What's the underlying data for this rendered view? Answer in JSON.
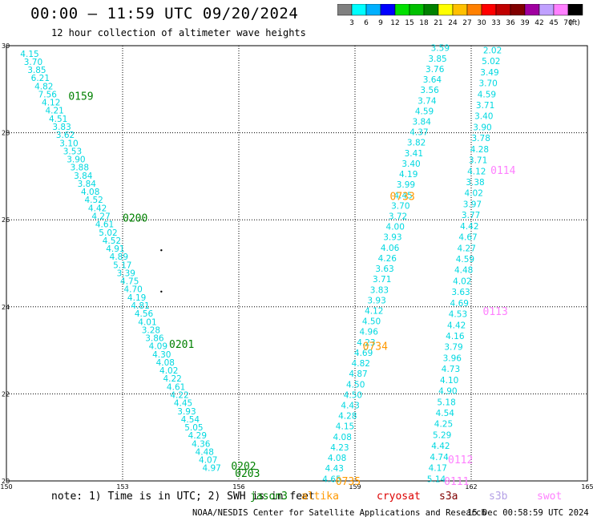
{
  "header": {
    "title": "00:00 – 11:59 UTC 09/20/2024",
    "subtitle": "12 hour collection of altimeter wave heights"
  },
  "colorbar": {
    "colors": [
      "#808080",
      "#00ffff",
      "#00b0ff",
      "#0000ff",
      "#00e000",
      "#00c000",
      "#008000",
      "#ffff00",
      "#ffc000",
      "#ff8000",
      "#ff0000",
      "#c00000",
      "#800000",
      "#a000a0",
      "#c0a0ff",
      "#ff80ff",
      "#000000"
    ],
    "labels": [
      "3",
      "6",
      "9",
      "12",
      "15",
      "18",
      "21",
      "24",
      "27",
      "30",
      "33",
      "36",
      "39",
      "42",
      "45",
      "70"
    ],
    "unit": "(ft)"
  },
  "note": "note: 1) Time is in UTC; 2) SWH is in feet",
  "satellites": [
    {
      "name": "jason3",
      "color": "#008000"
    },
    {
      "name": "altika",
      "color": "#ff9900"
    },
    {
      "name": "cryosat",
      "color": "#dd0000"
    },
    {
      "name": "s3a",
      "color": "#800000"
    },
    {
      "name": "s3b",
      "color": "#b4a0e6"
    },
    {
      "name": "swot",
      "color": "#ff80ff"
    }
  ],
  "footer": {
    "left": "NOAA/NESDIS Center for Satellite Applications and Research",
    "right": "15 Dec 00:58:59 UTC 2024"
  },
  "chart_data": {
    "type": "scatter",
    "xlim": [
      150,
      165
    ],
    "ylim": [
      20,
      30
    ],
    "xticks": [
      "150",
      "153",
      "156",
      "159",
      "162",
      "165"
    ],
    "yticks": [
      "30",
      "28",
      "26",
      "24",
      "22",
      "20"
    ],
    "ytick_values": [
      30,
      28,
      26,
      24,
      22,
      20
    ],
    "grid": true,
    "value_color": "#00d8e0",
    "tracks": [
      {
        "id": "track-1",
        "x0": 150.6,
        "y0": 29.82,
        "x1": 155.3,
        "y1": 20.3,
        "values": [
          "4.15",
          "3.70",
          "3.85",
          "6.21",
          "4.82",
          "7.56",
          "4.12",
          "4.21",
          "4.51",
          "3.83",
          "3.62",
          "3.10",
          "3.53",
          "3.90",
          "3.88",
          "3.84",
          "3.84",
          "4.08",
          "4.52",
          "4.42",
          "4.27",
          "4.61",
          "5.02",
          "4.52",
          "4.91",
          "4.89",
          "5.17",
          "3.39",
          "4.75",
          "4.70",
          "4.19",
          "4.81",
          "4.56",
          "4.01",
          "3.28",
          "3.86",
          "4.09",
          "4.30",
          "4.08",
          "4.02",
          "4.22",
          "4.61",
          "4.22",
          "4.45",
          "3.93",
          "4.54",
          "5.05",
          "4.29",
          "4.36",
          "4.48",
          "4.07",
          "4.97"
        ]
      },
      {
        "id": "track-2",
        "x0": 158.4,
        "y0": 20.05,
        "x1": 161.2,
        "y1": 29.95,
        "values": [
          "4.65",
          "4.43",
          "4.08",
          "4.23",
          "4.08",
          "4.15",
          "4.28",
          "4.43",
          "4.50",
          "4.50",
          "4.87",
          "4.82",
          "4.69",
          "4.23",
          "4.96",
          "4.50",
          "4.12",
          "3.93",
          "3.83",
          "3.71",
          "3.63",
          "4.26",
          "4.06",
          "3.93",
          "4.00",
          "3.72",
          "3.70",
          "4.45",
          "3.99",
          "4.19",
          "3.40",
          "3.41",
          "3.82",
          "4.37",
          "3.84",
          "4.59",
          "3.74",
          "3.56",
          "3.64",
          "3.76",
          "3.85",
          "3.59"
        ]
      },
      {
        "id": "track-3",
        "x0": 161.1,
        "y0": 20.05,
        "x1": 162.55,
        "y1": 29.9,
        "values": [
          "5.14",
          "4.17",
          "4.74",
          "4.42",
          "5.29",
          "4.25",
          "4.54",
          "5.18",
          "4.90",
          "4.10",
          "4.73",
          "3.96",
          "3.79",
          "4.16",
          "4.42",
          "4.53",
          "4.69",
          "3.63",
          "4.02",
          "4.48",
          "4.59",
          "4.27",
          "4.67",
          "4.42",
          "3.77",
          "3.97",
          "4.02",
          "3.38",
          "4.12",
          "3.71",
          "4.28",
          "3.78",
          "3.90",
          "3.40",
          "3.71",
          "4.59",
          "3.70",
          "3.49",
          "5.02",
          "2.02"
        ]
      }
    ],
    "time_labels": [
      {
        "text": "0159",
        "x": 151.6,
        "y": 28.85,
        "color": "#008000"
      },
      {
        "text": "0200",
        "x": 153.0,
        "y": 26.05,
        "color": "#008000"
      },
      {
        "text": "0201",
        "x": 154.2,
        "y": 23.15,
        "color": "#008000"
      },
      {
        "text": "0202",
        "x": 155.8,
        "y": 20.35,
        "color": "#008000"
      },
      {
        "text": "0203",
        "x": 155.9,
        "y": 20.18,
        "color": "#008000"
      },
      {
        "text": "0733",
        "x": 159.9,
        "y": 26.55,
        "color": "#ff9900"
      },
      {
        "text": "0734",
        "x": 159.2,
        "y": 23.1,
        "color": "#ff9900"
      },
      {
        "text": "0735",
        "x": 158.5,
        "y": 20.0,
        "color": "#ff9900"
      },
      {
        "text": "0114",
        "x": 162.5,
        "y": 27.15,
        "color": "#ff80ff"
      },
      {
        "text": "0113",
        "x": 162.3,
        "y": 23.9,
        "color": "#ff80ff"
      },
      {
        "text": "0112",
        "x": 161.4,
        "y": 20.5,
        "color": "#ff80ff"
      },
      {
        "text": "0111",
        "x": 161.3,
        "y": 20.0,
        "color": "#ff80ff"
      }
    ],
    "dots": [
      {
        "x": 154.0,
        "y": 25.3
      },
      {
        "x": 154.0,
        "y": 24.35
      }
    ]
  }
}
